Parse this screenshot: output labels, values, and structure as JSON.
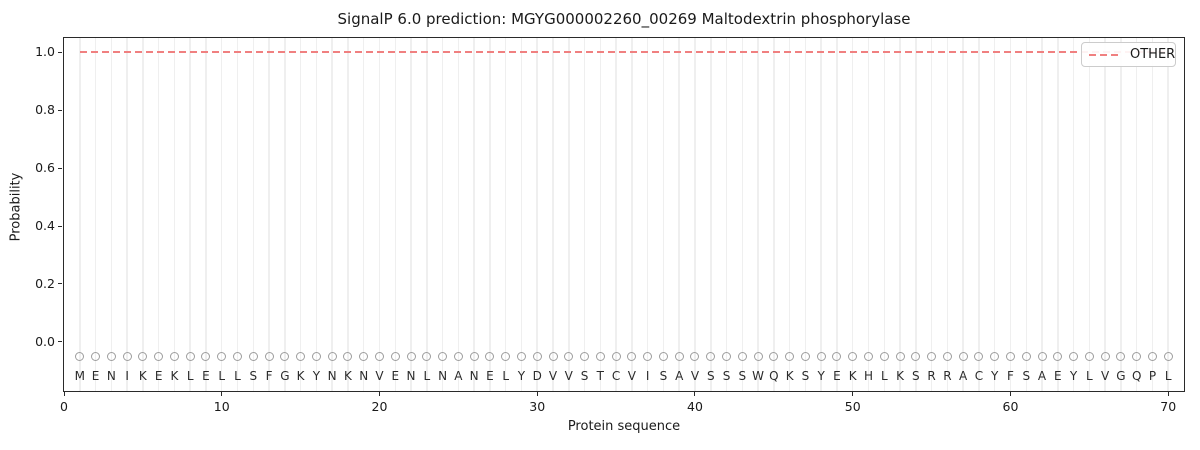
{
  "chart_data": {
    "type": "line",
    "title": "SignalP 6.0 prediction: MGYG000002260_00269 Maltodextrin phosphorylase",
    "xlabel": "Protein sequence",
    "ylabel": "Probability",
    "xlim": [
      0,
      71
    ],
    "ylim": [
      -0.17,
      1.05
    ],
    "x_ticks": [
      0,
      10,
      20,
      30,
      40,
      50,
      60,
      70
    ],
    "y_ticks": [
      0.0,
      0.2,
      0.4,
      0.6,
      0.8,
      1.0
    ],
    "grid": "light vertical gridline at every residue position, full plot height",
    "legend": {
      "position": "upper-right",
      "entries": [
        {
          "label": "OTHER",
          "color": "#f08080",
          "line_style": "dashed"
        }
      ]
    },
    "sequence": "MENIKEKLELLSFGKYNKNVENLNANELYDVVSTCVISAVSSSWQKSYEKHLKSRRACYFSAEYLVGQPL",
    "sequence_marker": "open-circle row beneath 0.0 line, one per residue",
    "series": [
      {
        "name": "OTHER",
        "color": "#f08080",
        "line_style": "dashed",
        "x": [
          1,
          2,
          3,
          4,
          5,
          6,
          7,
          8,
          9,
          10,
          11,
          12,
          13,
          14,
          15,
          16,
          17,
          18,
          19,
          20,
          21,
          22,
          23,
          24,
          25,
          26,
          27,
          28,
          29,
          30,
          31,
          32,
          33,
          34,
          35,
          36,
          37,
          38,
          39,
          40,
          41,
          42,
          43,
          44,
          45,
          46,
          47,
          48,
          49,
          50,
          51,
          52,
          53,
          54,
          55,
          56,
          57,
          58,
          59,
          60,
          61,
          62,
          63,
          64,
          65,
          66,
          67,
          68,
          69,
          70
        ],
        "values": [
          1.0,
          1.0,
          1.0,
          1.0,
          1.0,
          1.0,
          1.0,
          1.0,
          1.0,
          1.0,
          1.0,
          1.0,
          1.0,
          1.0,
          1.0,
          1.0,
          1.0,
          1.0,
          1.0,
          1.0,
          1.0,
          1.0,
          1.0,
          1.0,
          1.0,
          1.0,
          1.0,
          1.0,
          1.0,
          1.0,
          1.0,
          1.0,
          1.0,
          1.0,
          1.0,
          1.0,
          1.0,
          1.0,
          1.0,
          1.0,
          1.0,
          1.0,
          1.0,
          1.0,
          1.0,
          1.0,
          1.0,
          1.0,
          1.0,
          1.0,
          1.0,
          1.0,
          1.0,
          1.0,
          1.0,
          1.0,
          1.0,
          1.0,
          1.0,
          1.0,
          1.0,
          1.0,
          1.0,
          1.0,
          1.0,
          1.0,
          1.0,
          1.0,
          1.0,
          1.0
        ]
      }
    ]
  },
  "colors": {
    "line_other": "#f08080",
    "gridline": "#efefef",
    "marker_stroke": "#9e9e9e",
    "letter": "#2b2b2b",
    "spine": "#2a2a2a",
    "legend_border": "#cccccc",
    "background": "#ffffff"
  }
}
